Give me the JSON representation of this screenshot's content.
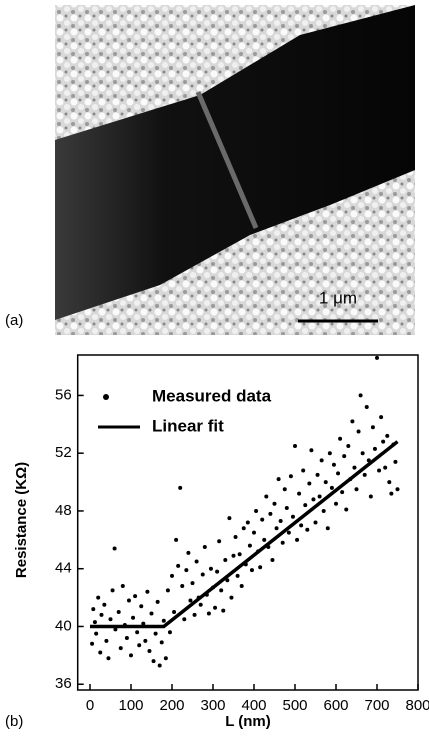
{
  "panel_a": {
    "label": "(a)",
    "scale_bar": "1 μm"
  },
  "chart_data": {
    "type": "scatter",
    "panel_label": "(b)",
    "xlabel": "L (nm)",
    "ylabel": "Resistance (KΩ)",
    "xlim": [
      -30,
      800
    ],
    "ylim": [
      35.6,
      58.8
    ],
    "xticks": [
      0,
      100,
      200,
      300,
      400,
      500,
      600,
      700,
      800
    ],
    "yticks": [
      36,
      40,
      44,
      48,
      52,
      56
    ],
    "legend": "upper left",
    "series": [
      {
        "name": "Measured data",
        "type": "scatter",
        "color": "#000000",
        "x": [
          5,
          8,
          12,
          15,
          20,
          25,
          28,
          35,
          40,
          45,
          50,
          55,
          60,
          62,
          70,
          75,
          80,
          85,
          90,
          95,
          100,
          105,
          110,
          115,
          120,
          125,
          130,
          135,
          140,
          145,
          150,
          155,
          160,
          165,
          170,
          175,
          180,
          185,
          190,
          195,
          200,
          205,
          210,
          215,
          220,
          225,
          230,
          235,
          240,
          245,
          250,
          255,
          260,
          265,
          270,
          275,
          280,
          285,
          290,
          295,
          300,
          305,
          310,
          315,
          320,
          325,
          330,
          335,
          340,
          345,
          350,
          355,
          360,
          365,
          370,
          375,
          380,
          385,
          390,
          395,
          400,
          405,
          410,
          415,
          420,
          425,
          430,
          435,
          440,
          445,
          450,
          455,
          460,
          465,
          470,
          475,
          480,
          485,
          490,
          495,
          500,
          505,
          510,
          515,
          520,
          525,
          530,
          535,
          540,
          545,
          550,
          555,
          560,
          565,
          570,
          575,
          580,
          585,
          590,
          595,
          600,
          605,
          610,
          615,
          620,
          625,
          630,
          635,
          640,
          645,
          650,
          655,
          660,
          665,
          670,
          675,
          680,
          685,
          690,
          695,
          700,
          705,
          710,
          715,
          720,
          725,
          730,
          735,
          740,
          745,
          750
        ],
        "values": [
          38.8,
          41.2,
          40.3,
          39.5,
          42.0,
          38.2,
          40.8,
          41.5,
          39.0,
          37.8,
          40.5,
          42.5,
          45.4,
          39.8,
          41.0,
          38.5,
          42.8,
          40.1,
          39.2,
          41.8,
          38.0,
          40.6,
          42.1,
          39.6,
          38.7,
          41.4,
          40.2,
          39.0,
          42.4,
          38.3,
          40.9,
          37.6,
          39.5,
          41.7,
          37.3,
          38.9,
          40.4,
          37.8,
          42.5,
          39.6,
          43.5,
          41.0,
          46.0,
          44.2,
          49.6,
          42.8,
          40.5,
          43.9,
          45.1,
          41.8,
          43.0,
          40.8,
          44.5,
          42.0,
          41.5,
          43.6,
          45.5,
          42.2,
          40.9,
          44.0,
          42.7,
          41.3,
          43.8,
          45.9,
          42.5,
          41.1,
          44.6,
          43.2,
          47.5,
          42.0,
          44.9,
          46.2,
          43.5,
          45.0,
          42.8,
          46.8,
          44.3,
          47.2,
          45.6,
          43.9,
          46.5,
          48.0,
          45.2,
          44.1,
          47.4,
          46.0,
          49.0,
          45.5,
          47.8,
          44.6,
          48.5,
          46.8,
          50.2,
          47.3,
          45.8,
          49.5,
          48.2,
          46.5,
          50.4,
          47.6,
          52.5,
          46.0,
          49.2,
          47.0,
          50.8,
          48.4,
          46.7,
          49.9,
          52.2,
          48.8,
          47.2,
          50.5,
          49.0,
          51.5,
          48.0,
          50.0,
          46.8,
          52.0,
          49.6,
          51.2,
          48.5,
          50.6,
          53.0,
          49.3,
          51.8,
          48.1,
          52.5,
          50.2,
          54.2,
          51.0,
          49.5,
          53.5,
          56.0,
          52.0,
          50.5,
          55.2,
          51.5,
          49.0,
          53.8,
          52.3,
          58.6,
          50.8,
          54.5,
          52.8,
          51.0,
          53.2,
          50.0,
          49.2,
          52.6,
          51.4,
          49.5
        ]
      },
      {
        "name": "Linear fit",
        "type": "line",
        "color": "#000000",
        "x": [
          0,
          180,
          750
        ],
        "values": [
          40,
          40,
          52.8
        ]
      }
    ]
  }
}
